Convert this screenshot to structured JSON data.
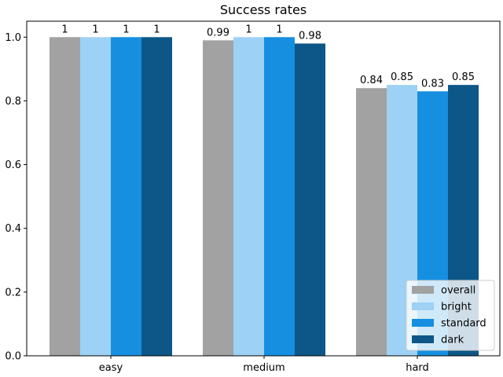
{
  "chart_data": {
    "type": "bar",
    "title": "Success rates",
    "xlabel": "",
    "ylabel": "",
    "categories": [
      "easy",
      "medium",
      "hard"
    ],
    "series": [
      {
        "name": "overall",
        "values": [
          1,
          0.99,
          0.84
        ],
        "labels": [
          "1",
          "0.99",
          "0.84"
        ],
        "color": "#a2a2a2"
      },
      {
        "name": "bright",
        "values": [
          1,
          1,
          0.85
        ],
        "labels": [
          "1",
          "1",
          "0.85"
        ],
        "color": "#9dd1f5"
      },
      {
        "name": "standard",
        "values": [
          1,
          1,
          0.83
        ],
        "labels": [
          "1",
          "1",
          "0.83"
        ],
        "color": "#168fe0"
      },
      {
        "name": "dark",
        "values": [
          1,
          0.98,
          0.85
        ],
        "labels": [
          "1",
          "0.98",
          "0.85"
        ],
        "color": "#0d5788"
      }
    ],
    "ylim": [
      0,
      1.05
    ],
    "yticks": [
      "0.0",
      "0.2",
      "0.4",
      "0.6",
      "0.8",
      "1.0"
    ],
    "grid": false,
    "legend_position": "lower-right"
  }
}
